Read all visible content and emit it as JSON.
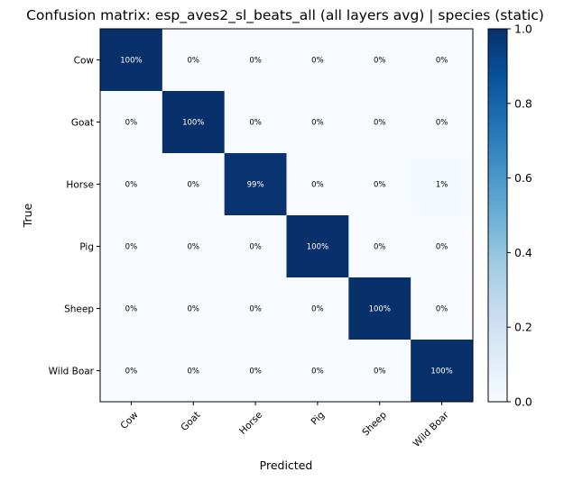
{
  "chart_data": {
    "type": "heatmap",
    "title": "Confusion matrix: esp_aves2_sl_beats_all (all layers avg) | species (static)",
    "xlabel": "Predicted",
    "ylabel": "True",
    "x_categories": [
      "Cow",
      "Goat",
      "Horse",
      "Pig",
      "Sheep",
      "Wild Boar"
    ],
    "y_categories": [
      "Cow",
      "Goat",
      "Horse",
      "Pig",
      "Sheep",
      "Wild Boar"
    ],
    "values": [
      [
        1.0,
        0.0,
        0.0,
        0.0,
        0.0,
        0.0
      ],
      [
        0.0,
        1.0,
        0.0,
        0.0,
        0.0,
        0.0
      ],
      [
        0.0,
        0.0,
        0.99,
        0.0,
        0.0,
        0.01
      ],
      [
        0.0,
        0.0,
        0.0,
        1.0,
        0.0,
        0.0
      ],
      [
        0.0,
        0.0,
        0.0,
        0.0,
        1.0,
        0.0
      ],
      [
        0.0,
        0.0,
        0.0,
        0.0,
        0.0,
        1.0
      ]
    ],
    "cell_labels": [
      [
        "100%",
        "0%",
        "0%",
        "0%",
        "0%",
        "0%"
      ],
      [
        "0%",
        "100%",
        "0%",
        "0%",
        "0%",
        "0%"
      ],
      [
        "0%",
        "0%",
        "99%",
        "0%",
        "0%",
        "1%"
      ],
      [
        "0%",
        "0%",
        "0%",
        "100%",
        "0%",
        "0%"
      ],
      [
        "0%",
        "0%",
        "0%",
        "0%",
        "100%",
        "0%"
      ],
      [
        "0%",
        "0%",
        "0%",
        "0%",
        "0%",
        "100%"
      ]
    ],
    "colorbar": {
      "colormap": "Blues",
      "range": [
        0.0,
        1.0
      ],
      "ticks": [
        "0.0",
        "0.2",
        "0.4",
        "0.6",
        "0.8",
        "1.0"
      ]
    },
    "grid": false
  }
}
